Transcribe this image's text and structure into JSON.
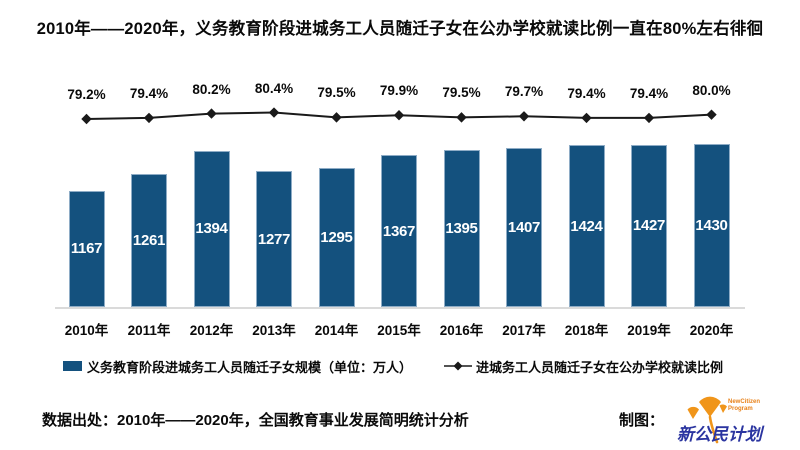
{
  "title": "2010年——2020年，义务教育阶段进城务工人员随迁子女在公办学校就读比例一直在80%左右徘徊",
  "chart_data": {
    "type": "combo",
    "title": "2010年——2020年，义务教育阶段进城务工人员随迁子女在公办学校就读比例一直在80%左右徘徊",
    "categories": [
      "2010年",
      "2011年",
      "2012年",
      "2013年",
      "2014年",
      "2015年",
      "2016年",
      "2017年",
      "2018年",
      "2019年",
      "2020年"
    ],
    "series": [
      {
        "name": "义务教育阶段进城务工人员随迁子女规模（单位：万人）",
        "type": "bar",
        "values": [
          1167,
          1261,
          1394,
          1277,
          1295,
          1367,
          1395,
          1407,
          1424,
          1427,
          1430
        ]
      },
      {
        "name": "进城务工人员随迁子女在公办学校就读比例",
        "type": "line",
        "values": [
          79.2,
          79.4,
          80.2,
          80.4,
          79.5,
          79.9,
          79.5,
          79.7,
          79.4,
          79.4,
          80.0
        ],
        "labels": [
          "79.2%",
          "79.4%",
          "80.2%",
          "80.4%",
          "79.5%",
          "79.9%",
          "79.5%",
          "79.7%",
          "79.4%",
          "79.4%",
          "80.0%"
        ]
      }
    ],
    "legend_position": "bottom",
    "gridlines": false,
    "data_labels": true
  },
  "footer": {
    "source": "数据出处：2010年——2020年，全国教育事业发展简明统计分析",
    "credit_label": "制图：",
    "logo": {
      "name_cn": "新公民计划",
      "subtext_line1": "NewCitizen",
      "subtext_line2": "Program"
    }
  },
  "colors": {
    "bar_fill": "#14517E",
    "bar_border": "#8EACC6",
    "line": "#1A1A1A",
    "baseline": "#DADADA",
    "logo_orange": "#F0951A",
    "logo_blue": "#2B35A0"
  }
}
